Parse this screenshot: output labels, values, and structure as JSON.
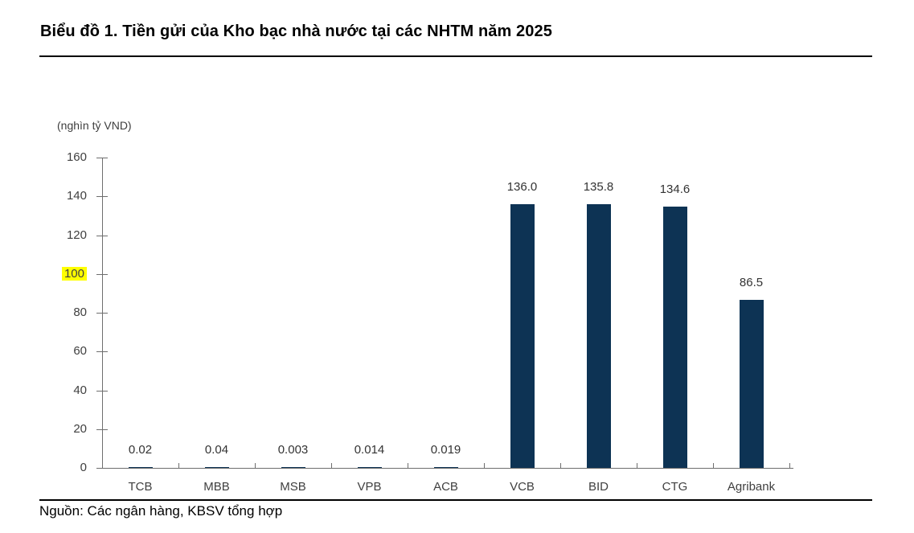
{
  "header": {
    "title": "Biểu đồ 1. Tiền gửi của Kho bạc nhà nước tại các NHTM năm 2025"
  },
  "footer": {
    "source": "Nguồn: Các ngân hàng, KBSV tổng hợp"
  },
  "chart_data": {
    "type": "bar",
    "title": "Biểu đồ 1. Tiền gửi của Kho bạc nhà nước tại các NHTM năm 2025",
    "unit_label": "(nghìn tỷ VND)",
    "categories": [
      "TCB",
      "MBB",
      "MSB",
      "VPB",
      "ACB",
      "VCB",
      "BID",
      "CTG",
      "Agribank"
    ],
    "values": [
      0.02,
      0.04,
      0.003,
      0.014,
      0.019,
      136.0,
      135.8,
      134.6,
      86.5
    ],
    "value_labels": [
      "0.02",
      "0.04",
      "0.003",
      "0.014",
      "0.019",
      "136.0",
      "135.8",
      "134.6",
      "86.5"
    ],
    "xlabel": "",
    "ylabel": "(nghìn tỷ VND)",
    "ylim": [
      0,
      160
    ],
    "yticks": [
      0,
      20,
      40,
      60,
      80,
      100,
      120,
      140,
      160
    ],
    "highlighted_ytick": 100,
    "highlight_color": "#ffff00",
    "bar_color": "#0d3354",
    "grid": false,
    "legend_position": "none",
    "source": "Nguồn: Các ngân hàng, KBSV tổng hợp"
  }
}
